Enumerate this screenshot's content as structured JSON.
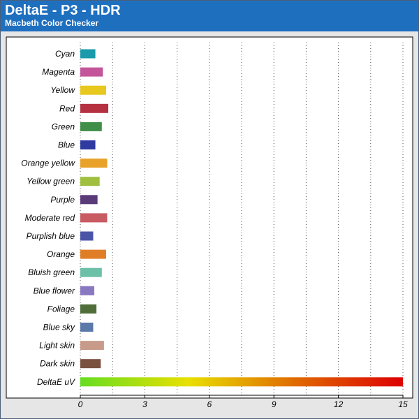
{
  "header": {
    "title": "DeltaE - P3 - HDR",
    "subtitle": "Macbeth Color Checker"
  },
  "colors": {
    "header_bg": "#1f6fbf",
    "page_bg": "#e6e6e6",
    "grid": "#555555"
  },
  "chart_data": {
    "type": "bar",
    "orientation": "horizontal",
    "title": "DeltaE - P3 - HDR",
    "subtitle": "Macbeth Color Checker",
    "xlim": [
      0,
      15
    ],
    "xticks": [
      0,
      3,
      6,
      9,
      12,
      15
    ],
    "grid": "vertical dotted lines",
    "categories": [
      "Cyan",
      "Magenta",
      "Yellow",
      "Red",
      "Green",
      "Blue",
      "Orange yellow",
      "Yellow green",
      "Purple",
      "Moderate red",
      "Purplish blue",
      "Orange",
      "Bluish green",
      "Blue flower",
      "Foliage",
      "Blue sky",
      "Light skin",
      "Dark skin",
      "DeltaE uV"
    ],
    "values": [
      0.7,
      1.05,
      1.2,
      1.3,
      1.0,
      0.7,
      1.25,
      0.9,
      0.8,
      1.25,
      0.6,
      1.2,
      1.0,
      0.65,
      0.75,
      0.6,
      1.1,
      0.95,
      15
    ],
    "bar_colors": [
      "#1a9aaa",
      "#c4559a",
      "#e8c81e",
      "#b53040",
      "#3f8f48",
      "#2e3aa0",
      "#e8a22a",
      "#9fc03e",
      "#5a3a78",
      "#c85a62",
      "#4a55a8",
      "#e07e28",
      "#6cc0a8",
      "#8878c0",
      "#4f6e3a",
      "#5a78a8",
      "#c89a8a",
      "#7a5040",
      "gradient"
    ],
    "gradient_stops": [
      "#66dd22",
      "#e8e000",
      "#e06a00",
      "#dd0000"
    ]
  }
}
